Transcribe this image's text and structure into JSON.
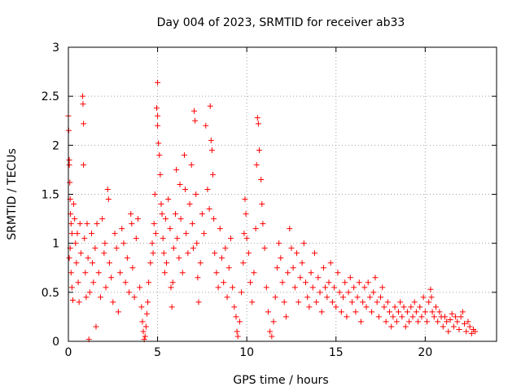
{
  "chart_data": {
    "type": "scatter",
    "title": "Day 004 of 2023, SRMTID for receiver ab33",
    "xlabel": "GPS time / hours",
    "ylabel": "SRMTID / TECUs",
    "xlim": [
      0,
      24
    ],
    "ylim": [
      0,
      3
    ],
    "xticks": [
      0,
      5,
      10,
      15,
      20
    ],
    "yticks": [
      0,
      0.5,
      1,
      1.5,
      2,
      2.5,
      3
    ],
    "xtick_labels": [
      "0",
      "5",
      "10",
      "15",
      "20"
    ],
    "ytick_labels": [
      "0",
      "0.5",
      "1",
      "1.5",
      "2",
      "2.5",
      "3"
    ],
    "grid": true,
    "marker": "+",
    "color": "#ff0000",
    "series": [
      {
        "name": "SRMTID",
        "points": [
          [
            0.0,
            2.3
          ],
          [
            0.02,
            2.15
          ],
          [
            0.05,
            1.85
          ],
          [
            0.05,
            1.8
          ],
          [
            0.08,
            1.62
          ],
          [
            0.1,
            1.45
          ],
          [
            0.12,
            1.3
          ],
          [
            0.15,
            1.2
          ],
          [
            0.2,
            1.1
          ],
          [
            0.1,
            0.95
          ],
          [
            0.05,
            0.85
          ],
          [
            0.15,
            0.7
          ],
          [
            0.2,
            0.55
          ],
          [
            0.25,
            0.42
          ],
          [
            0.3,
            1.4
          ],
          [
            0.35,
            1.25
          ],
          [
            0.4,
            1.0
          ],
          [
            0.45,
            0.8
          ],
          [
            0.5,
            1.1
          ],
          [
            0.55,
            0.6
          ],
          [
            0.6,
            0.4
          ],
          [
            0.65,
            1.2
          ],
          [
            0.7,
            0.9
          ],
          [
            0.8,
            2.5
          ],
          [
            0.82,
            2.42
          ],
          [
            0.85,
            2.22
          ],
          [
            0.85,
            1.8
          ],
          [
            0.9,
            1.05
          ],
          [
            0.95,
            0.7
          ],
          [
            1.0,
            0.45
          ],
          [
            1.05,
            1.2
          ],
          [
            1.1,
            0.85
          ],
          [
            1.15,
            0.02
          ],
          [
            1.2,
            0.5
          ],
          [
            1.3,
            1.1
          ],
          [
            1.35,
            0.8
          ],
          [
            1.4,
            0.6
          ],
          [
            1.5,
            0.95
          ],
          [
            1.55,
            0.15
          ],
          [
            1.6,
            1.2
          ],
          [
            1.7,
            0.7
          ],
          [
            1.8,
            0.45
          ],
          [
            1.9,
            1.25
          ],
          [
            2.0,
            0.9
          ],
          [
            2.05,
            1.0
          ],
          [
            2.1,
            0.55
          ],
          [
            2.2,
            1.55
          ],
          [
            2.25,
            1.45
          ],
          [
            2.3,
            0.8
          ],
          [
            2.4,
            0.65
          ],
          [
            2.5,
            0.4
          ],
          [
            2.6,
            1.1
          ],
          [
            2.7,
            0.95
          ],
          [
            2.8,
            0.3
          ],
          [
            2.9,
            0.7
          ],
          [
            3.0,
            1.15
          ],
          [
            3.1,
            1.0
          ],
          [
            3.2,
            0.6
          ],
          [
            3.3,
            0.85
          ],
          [
            3.4,
            0.5
          ],
          [
            3.5,
            1.3
          ],
          [
            3.55,
            1.2
          ],
          [
            3.6,
            0.75
          ],
          [
            3.7,
            0.45
          ],
          [
            3.8,
            1.05
          ],
          [
            3.9,
            1.25
          ],
          [
            4.0,
            0.55
          ],
          [
            4.1,
            0.35
          ],
          [
            4.15,
            0.2
          ],
          [
            4.2,
            0.1
          ],
          [
            4.25,
            0.02
          ],
          [
            4.3,
            0.05
          ],
          [
            4.35,
            0.15
          ],
          [
            4.4,
            0.28
          ],
          [
            4.45,
            0.4
          ],
          [
            4.5,
            0.6
          ],
          [
            4.6,
            0.8
          ],
          [
            4.7,
            1.0
          ],
          [
            4.75,
            0.9
          ],
          [
            4.8,
            1.2
          ],
          [
            4.85,
            1.5
          ],
          [
            4.9,
            1.1
          ],
          [
            4.95,
            2.38
          ],
          [
            5.0,
            2.3
          ],
          [
            5.0,
            2.2
          ],
          [
            5.0,
            2.64
          ],
          [
            5.05,
            2.02
          ],
          [
            5.1,
            1.9
          ],
          [
            5.15,
            1.7
          ],
          [
            5.2,
            1.4
          ],
          [
            5.25,
            1.3
          ],
          [
            5.3,
            1.05
          ],
          [
            5.35,
            0.9
          ],
          [
            5.4,
            0.7
          ],
          [
            5.45,
            1.25
          ],
          [
            5.5,
            0.8
          ],
          [
            5.6,
            1.45
          ],
          [
            5.7,
            1.15
          ],
          [
            5.75,
            0.55
          ],
          [
            5.8,
            0.35
          ],
          [
            5.85,
            0.6
          ],
          [
            5.9,
            0.95
          ],
          [
            6.0,
            1.3
          ],
          [
            6.05,
            1.75
          ],
          [
            6.1,
            1.05
          ],
          [
            6.2,
            0.85
          ],
          [
            6.25,
            1.6
          ],
          [
            6.3,
            1.25
          ],
          [
            6.4,
            0.7
          ],
          [
            6.5,
            1.9
          ],
          [
            6.55,
            1.55
          ],
          [
            6.6,
            1.1
          ],
          [
            6.7,
            0.9
          ],
          [
            6.8,
            1.4
          ],
          [
            6.9,
            1.8
          ],
          [
            6.95,
            1.2
          ],
          [
            7.0,
            0.95
          ],
          [
            7.05,
            2.35
          ],
          [
            7.1,
            2.25
          ],
          [
            7.15,
            1.5
          ],
          [
            7.2,
            1.0
          ],
          [
            7.25,
            0.65
          ],
          [
            7.3,
            0.4
          ],
          [
            7.4,
            0.8
          ],
          [
            7.5,
            1.3
          ],
          [
            7.6,
            1.1
          ],
          [
            7.7,
            2.2
          ],
          [
            7.8,
            1.55
          ],
          [
            7.9,
            1.35
          ],
          [
            7.95,
            2.4
          ],
          [
            8.0,
            2.05
          ],
          [
            8.05,
            1.95
          ],
          [
            8.1,
            1.7
          ],
          [
            8.15,
            1.25
          ],
          [
            8.2,
            0.9
          ],
          [
            8.3,
            0.7
          ],
          [
            8.4,
            0.55
          ],
          [
            8.5,
            1.15
          ],
          [
            8.6,
            0.85
          ],
          [
            8.7,
            0.6
          ],
          [
            8.8,
            0.95
          ],
          [
            8.9,
            0.45
          ],
          [
            9.0,
            0.75
          ],
          [
            9.1,
            1.05
          ],
          [
            9.2,
            0.55
          ],
          [
            9.3,
            0.35
          ],
          [
            9.4,
            0.25
          ],
          [
            9.45,
            0.1
          ],
          [
            9.5,
            0.05
          ],
          [
            9.6,
            0.2
          ],
          [
            9.7,
            0.5
          ],
          [
            9.8,
            0.8
          ],
          [
            9.85,
            1.1
          ],
          [
            9.9,
            1.45
          ],
          [
            9.95,
            1.3
          ],
          [
            10.0,
            1.05
          ],
          [
            10.1,
            0.9
          ],
          [
            10.2,
            0.6
          ],
          [
            10.3,
            0.4
          ],
          [
            10.4,
            0.7
          ],
          [
            10.5,
            1.15
          ],
          [
            10.55,
            1.8
          ],
          [
            10.6,
            2.28
          ],
          [
            10.65,
            2.22
          ],
          [
            10.7,
            1.95
          ],
          [
            10.8,
            1.65
          ],
          [
            10.85,
            1.4
          ],
          [
            10.9,
            1.2
          ],
          [
            11.0,
            0.95
          ],
          [
            11.1,
            0.55
          ],
          [
            11.2,
            0.3
          ],
          [
            11.3,
            0.1
          ],
          [
            11.4,
            0.05
          ],
          [
            11.5,
            0.2
          ],
          [
            11.6,
            0.45
          ],
          [
            11.7,
            0.75
          ],
          [
            11.8,
            1.0
          ],
          [
            11.9,
            0.85
          ],
          [
            12.0,
            0.6
          ],
          [
            12.1,
            0.4
          ],
          [
            12.2,
            0.25
          ],
          [
            12.3,
            0.7
          ],
          [
            12.4,
            1.15
          ],
          [
            12.5,
            0.95
          ],
          [
            12.6,
            0.75
          ],
          [
            12.7,
            0.55
          ],
          [
            12.8,
            0.9
          ],
          [
            12.9,
            0.4
          ],
          [
            13.0,
            0.65
          ],
          [
            13.1,
            0.8
          ],
          [
            13.2,
            1.0
          ],
          [
            13.3,
            0.6
          ],
          [
            13.4,
            0.45
          ],
          [
            13.5,
            0.35
          ],
          [
            13.6,
            0.7
          ],
          [
            13.7,
            0.55
          ],
          [
            13.8,
            0.9
          ],
          [
            13.9,
            0.4
          ],
          [
            14.0,
            0.65
          ],
          [
            14.1,
            0.5
          ],
          [
            14.2,
            0.3
          ],
          [
            14.3,
            0.75
          ],
          [
            14.4,
            0.55
          ],
          [
            14.5,
            0.45
          ],
          [
            14.6,
            0.6
          ],
          [
            14.7,
            0.8
          ],
          [
            14.8,
            0.4
          ],
          [
            14.9,
            0.55
          ],
          [
            15.0,
            0.35
          ],
          [
            15.1,
            0.7
          ],
          [
            15.2,
            0.5
          ],
          [
            15.3,
            0.3
          ],
          [
            15.4,
            0.45
          ],
          [
            15.5,
            0.6
          ],
          [
            15.6,
            0.25
          ],
          [
            15.7,
            0.5
          ],
          [
            15.8,
            0.65
          ],
          [
            15.9,
            0.4
          ],
          [
            16.0,
            0.55
          ],
          [
            16.1,
            0.3
          ],
          [
            16.2,
            0.45
          ],
          [
            16.3,
            0.6
          ],
          [
            16.4,
            0.2
          ],
          [
            16.5,
            0.4
          ],
          [
            16.6,
            0.55
          ],
          [
            16.7,
            0.35
          ],
          [
            16.8,
            0.6
          ],
          [
            16.9,
            0.45
          ],
          [
            17.0,
            0.3
          ],
          [
            17.1,
            0.5
          ],
          [
            17.2,
            0.65
          ],
          [
            17.3,
            0.4
          ],
          [
            17.4,
            0.25
          ],
          [
            17.5,
            0.45
          ],
          [
            17.6,
            0.55
          ],
          [
            17.7,
            0.35
          ],
          [
            17.8,
            0.2
          ],
          [
            17.9,
            0.4
          ],
          [
            18.0,
            0.3
          ],
          [
            18.1,
            0.15
          ],
          [
            18.2,
            0.25
          ],
          [
            18.3,
            0.35
          ],
          [
            18.4,
            0.2
          ],
          [
            18.5,
            0.3
          ],
          [
            18.6,
            0.4
          ],
          [
            18.7,
            0.25
          ],
          [
            18.8,
            0.35
          ],
          [
            18.9,
            0.15
          ],
          [
            19.0,
            0.3
          ],
          [
            19.1,
            0.2
          ],
          [
            19.2,
            0.35
          ],
          [
            19.3,
            0.25
          ],
          [
            19.4,
            0.4
          ],
          [
            19.5,
            0.3
          ],
          [
            19.6,
            0.2
          ],
          [
            19.7,
            0.35
          ],
          [
            19.8,
            0.25
          ],
          [
            19.9,
            0.45
          ],
          [
            20.0,
            0.3
          ],
          [
            20.1,
            0.2
          ],
          [
            20.2,
            0.4
          ],
          [
            20.3,
            0.53
          ],
          [
            20.35,
            0.45
          ],
          [
            20.4,
            0.3
          ],
          [
            20.5,
            0.25
          ],
          [
            20.6,
            0.35
          ],
          [
            20.7,
            0.2
          ],
          [
            20.8,
            0.3
          ],
          [
            20.9,
            0.25
          ],
          [
            21.0,
            0.15
          ],
          [
            21.1,
            0.25
          ],
          [
            21.2,
            0.2
          ],
          [
            21.3,
            0.1
          ],
          [
            21.4,
            0.22
          ],
          [
            21.5,
            0.28
          ],
          [
            21.6,
            0.15
          ],
          [
            21.7,
            0.25
          ],
          [
            21.8,
            0.2
          ],
          [
            21.9,
            0.12
          ],
          [
            22.0,
            0.25
          ],
          [
            22.1,
            0.3
          ],
          [
            22.2,
            0.18
          ],
          [
            22.3,
            0.1
          ],
          [
            22.4,
            0.2
          ],
          [
            22.5,
            0.15
          ],
          [
            22.6,
            0.08
          ],
          [
            22.7,
            0.12
          ],
          [
            22.8,
            0.1
          ]
        ]
      }
    ]
  }
}
